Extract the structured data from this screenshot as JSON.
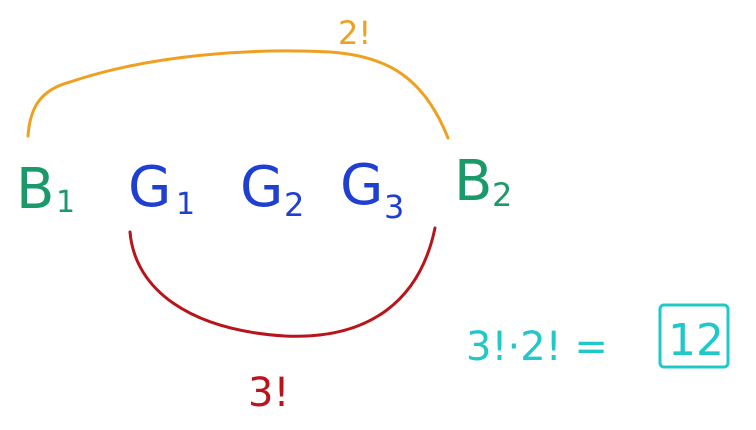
{
  "diagram": {
    "top_arc_label": "2!",
    "bottom_arc_label": "3!",
    "people": [
      {
        "letter": "B",
        "sub": "1"
      },
      {
        "letter": "G",
        "sub": "1"
      },
      {
        "letter": "G",
        "sub": "2"
      },
      {
        "letter": "G",
        "sub": "3"
      },
      {
        "letter": "B",
        "sub": "2"
      }
    ],
    "equation": {
      "expression": "3!·2! =",
      "result": "12"
    },
    "colors": {
      "boys": "#1a9a6a",
      "girls": "#1f3fd0",
      "top_arc": "#f0a020",
      "bottom_arc": "#b8141a",
      "equation": "#20c8c8"
    }
  }
}
